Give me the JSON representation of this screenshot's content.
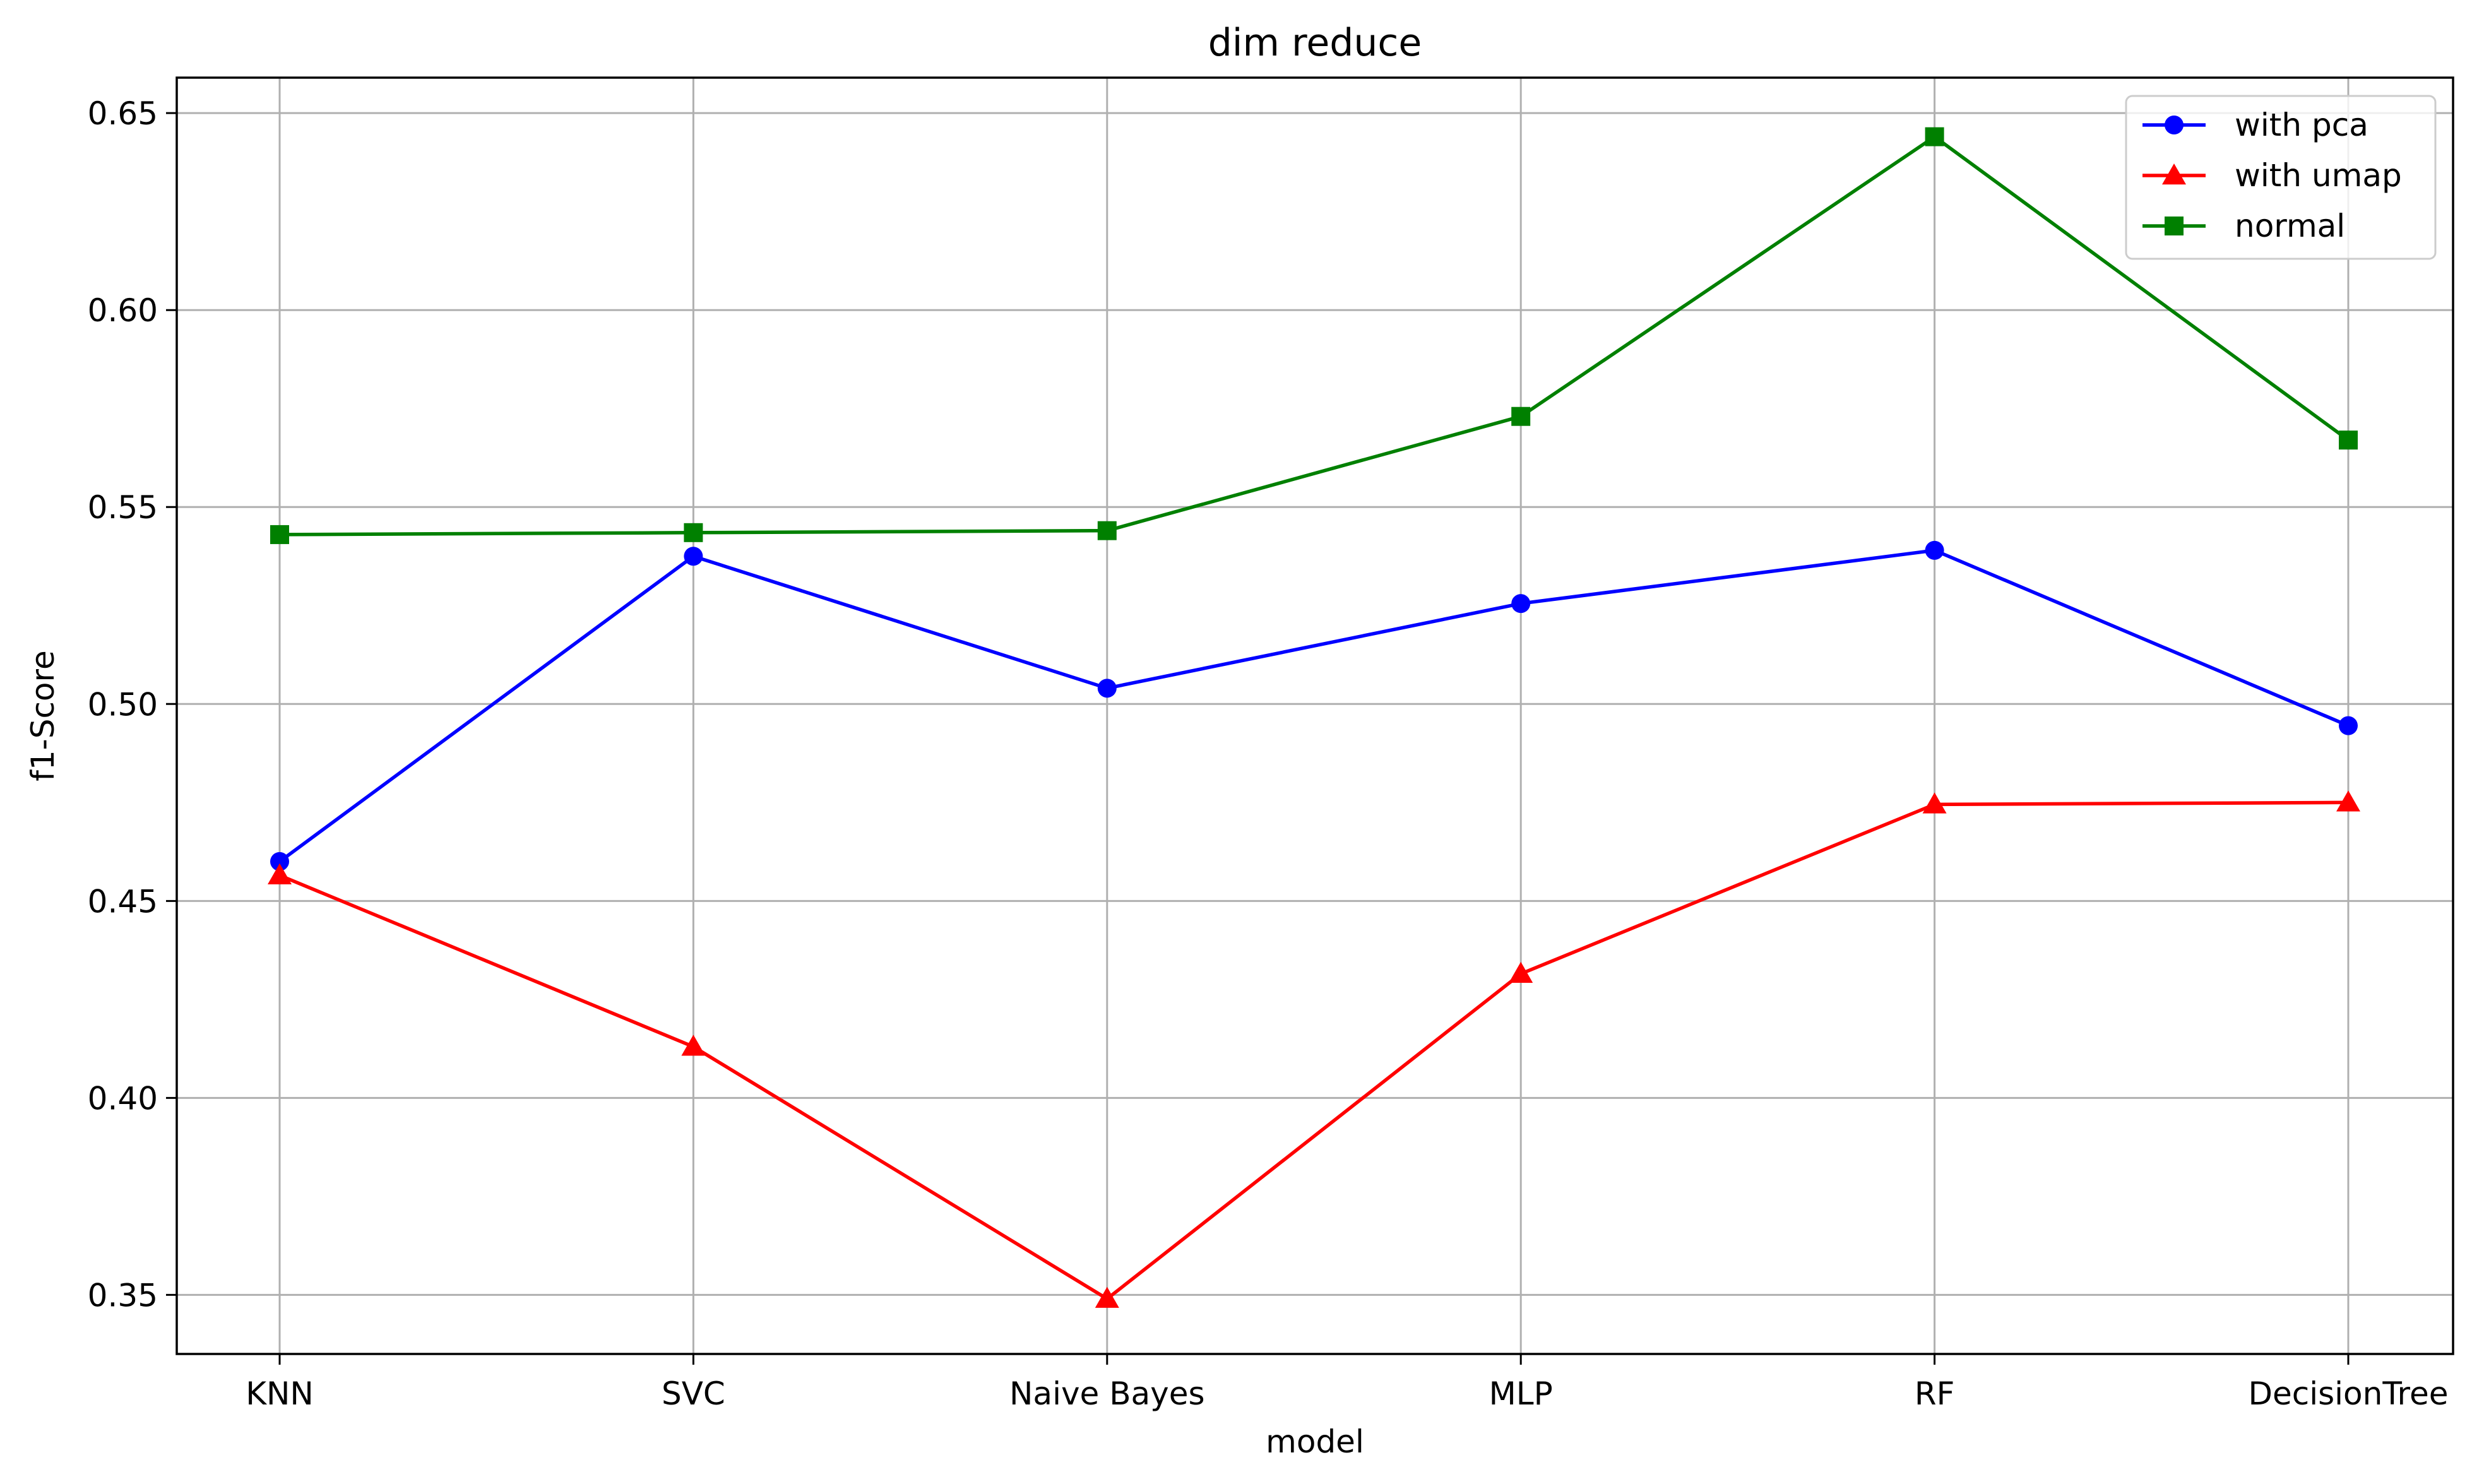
{
  "chart_data": {
    "type": "line",
    "title": "dim reduce",
    "xlabel": "model",
    "ylabel": "f1-Score",
    "categories": [
      "KNN",
      "SVC",
      "Naive Bayes",
      "MLP",
      "RF",
      "DecisionTree"
    ],
    "ylim": [
      0.335,
      0.659
    ],
    "yticks": [
      0.35,
      0.4,
      0.45,
      0.5,
      0.55,
      0.6,
      0.65
    ],
    "ytick_labels": [
      "0.35",
      "0.40",
      "0.45",
      "0.50",
      "0.55",
      "0.60",
      "0.65"
    ],
    "grid": true,
    "legend_position": "top-right",
    "series": [
      {
        "name": "with pca",
        "color": "#0000ff",
        "marker": "circle",
        "values": [
          0.46,
          0.5375,
          0.504,
          0.5255,
          0.539,
          0.4945
        ]
      },
      {
        "name": "with umap",
        "color": "#ff0000",
        "marker": "triangle",
        "values": [
          0.4565,
          0.413,
          0.349,
          0.4315,
          0.4745,
          0.475
        ]
      },
      {
        "name": "normal",
        "color": "#008000",
        "marker": "square",
        "values": [
          0.543,
          0.5435,
          0.544,
          0.573,
          0.644,
          0.567
        ]
      }
    ]
  }
}
